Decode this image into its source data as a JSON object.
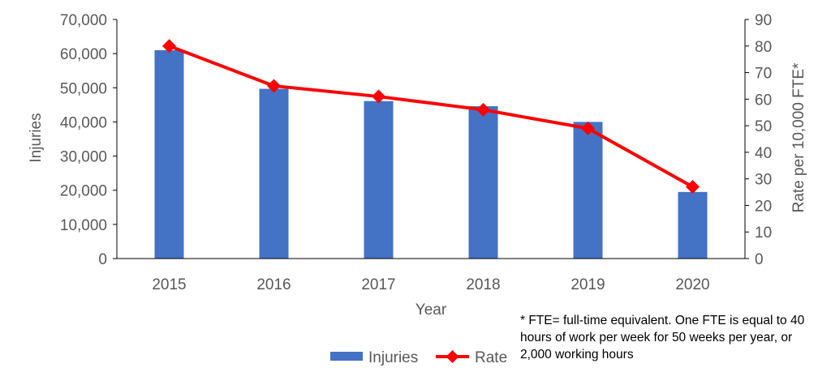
{
  "chart_data": {
    "type": "bar",
    "categories": [
      "2015",
      "2016",
      "2017",
      "2018",
      "2019",
      "2020"
    ],
    "series": [
      {
        "name": "Injuries",
        "type": "bar",
        "axis": "left",
        "color": "#4472C4",
        "values": [
          61000,
          49700,
          46100,
          44600,
          40000,
          19500
        ]
      },
      {
        "name": "Rate",
        "type": "line",
        "axis": "right",
        "color": "#FF0000",
        "marker": "diamond",
        "values": [
          80,
          65,
          61,
          56,
          49,
          27
        ]
      }
    ],
    "xlabel": "Year",
    "ylabel": "Injuries",
    "y2label": "Rate per 10,000 FTE*",
    "ylim": [
      0,
      70000
    ],
    "y2lim": [
      0,
      90
    ],
    "yticks": [
      "0",
      "10,000",
      "20,000",
      "30,000",
      "40,000",
      "50,000",
      "60,000",
      "70,000"
    ],
    "y2ticks": [
      "0",
      "10",
      "20",
      "30",
      "40",
      "50",
      "60",
      "70",
      "80",
      "90"
    ],
    "grid": false,
    "legend": "bottom-center"
  },
  "footnote": "* FTE= full-time equivalent. One FTE is equal to 40 hours of work per week for 50 weeks per year, or 2,000 working hours"
}
